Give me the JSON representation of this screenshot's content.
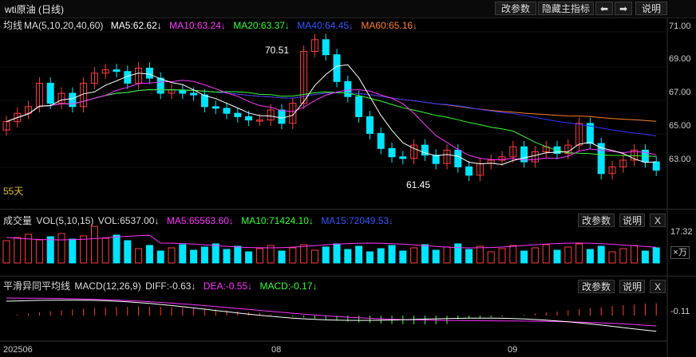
{
  "window": {
    "title": "wti原油 (日线)",
    "buttons": {
      "modify_params": "改参数",
      "hide_indicator": "隐藏主指标",
      "prev": "⬅",
      "next": "➡",
      "help": "说明"
    }
  },
  "main_panel": {
    "legend_label": "均线",
    "legend_params": "MA(5,10,20,40,60)",
    "ma5": "MA5:62.62↓",
    "ma10": "MA10:63.24↓",
    "ma20": "MA20:63.37↓",
    "ma40": "MA40:64.45↓",
    "ma60": "MA60:65.16↓",
    "y_ticks": [
      "71.00",
      "69.00",
      "67.00",
      "65.00",
      "63.00"
    ],
    "high_label": "70.51",
    "low_label": "61.45",
    "period_label": "55天",
    "colors": {
      "up": "#ff3b3b",
      "down": "#00e5ff",
      "ma5": "#ffffff",
      "ma10": "#ff33ff",
      "ma20": "#33ff33",
      "ma40": "#3333ff",
      "ma60": "#ff7f27"
    }
  },
  "volume_panel": {
    "label": "成交量",
    "params": "VOL(5,10,15)",
    "vol": "VOL:6537.00↓",
    "ma5": "MA5:65563.60↓",
    "ma10": "MA10:71424.10↓",
    "ma15": "MA15:72049.53↓",
    "y_tick": "17.32",
    "unit": "×万",
    "buttons": {
      "modify_params": "改参数",
      "help": "说明",
      "close": "X"
    }
  },
  "macd_panel": {
    "label": "平滑异同平均线",
    "params": "MACD(12,26,9)",
    "diff": "DIFF:-0.63↓",
    "dea": "DEA:-0.55↓",
    "macd": "MACD:-0.17↓",
    "y_tick": "-0.11",
    "buttons": {
      "modify_params": "改参数",
      "help": "说明",
      "close": "X"
    }
  },
  "x_axis": {
    "labels": [
      "202506",
      "08",
      "09"
    ]
  }
}
